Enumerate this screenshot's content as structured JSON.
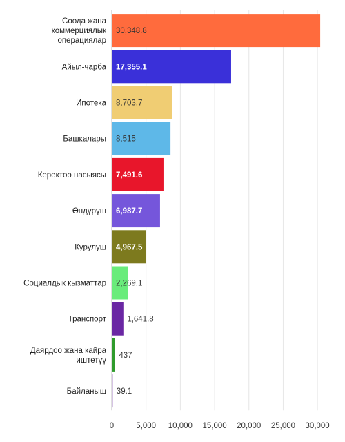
{
  "chart_data": {
    "type": "bar",
    "orientation": "horizontal",
    "title": "",
    "xlabel": "",
    "ylabel": "",
    "xlim": [
      0,
      32000
    ],
    "grid": true,
    "categories": [
      [
        "Соода жана",
        "коммерциялык",
        "операциялар"
      ],
      [
        "Айыл-чарба"
      ],
      [
        "Ипотека"
      ],
      [
        "Башкалары"
      ],
      [
        "Керектөө насыясы"
      ],
      [
        "Өндүрүш"
      ],
      [
        "Курулуш"
      ],
      [
        "Социалдык кызматтар"
      ],
      [
        "Транспорт"
      ],
      [
        "Даярдоо жана кайра",
        "иштетүү"
      ],
      [
        "Байланыш"
      ]
    ],
    "values": [
      30348.8,
      17355.1,
      8703.7,
      8515,
      7491.6,
      6987.7,
      4967.5,
      2269.1,
      1641.8,
      437,
      39.1
    ],
    "value_labels": [
      "30,348.8",
      "17,355.1",
      "8,703.7",
      "8,515",
      "7,491.6",
      "6,987.7",
      "4,967.5",
      "2,269.1",
      "1,641.8",
      "437",
      "39.1"
    ],
    "colors": [
      "#ff6b3d",
      "#3a30d9",
      "#f0cd73",
      "#5eb8e8",
      "#e8162b",
      "#7556db",
      "#7d7a1e",
      "#69ec7b",
      "#6a27a3",
      "#2f9b2c",
      "#7a3ca8"
    ],
    "value_label_colors": [
      "#333333",
      "#ffffff",
      "#333333",
      "#333333",
      "#ffffff",
      "#ffffff",
      "#ffffff",
      "#333333",
      "#333333",
      "#333333",
      "#333333"
    ],
    "ticks": [
      0,
      5000,
      10000,
      15000,
      20000,
      25000,
      30000
    ],
    "tick_labels": [
      "0",
      "5,000",
      "10,000",
      "15,000",
      "20,000",
      "25,000",
      "30,000"
    ]
  }
}
